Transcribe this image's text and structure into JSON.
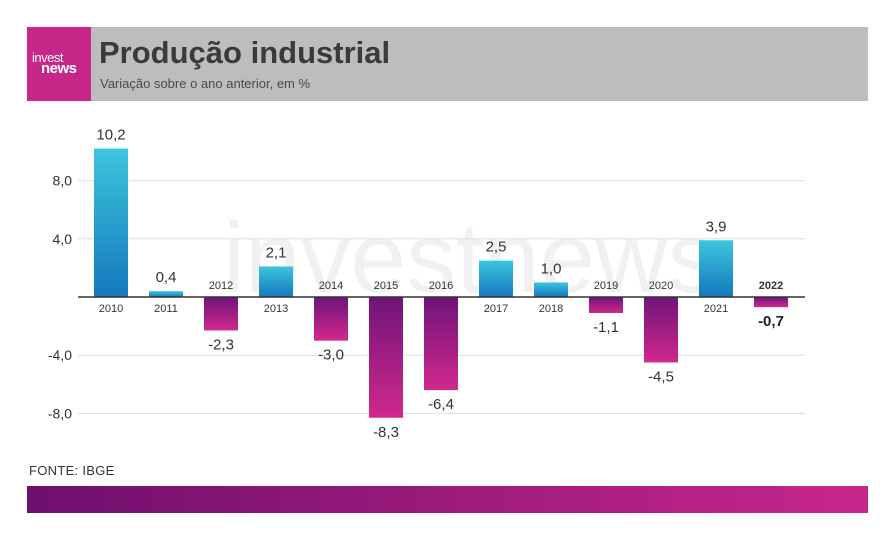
{
  "header": {
    "logo_line1": "invest",
    "logo_line2": "news",
    "title": "Produção industrial",
    "subtitle": "Variação sobre o ano anterior, em %"
  },
  "source": "FONTE: IBGE",
  "watermark": "investnews",
  "colors": {
    "positive_top": "#3cc6dc",
    "positive_bottom": "#1478be",
    "negative_top": "#6e147a",
    "negative_bottom": "#d2288c",
    "header_bg": "#bdbdbd",
    "logo_bg": "#c8278a"
  },
  "chart_data": {
    "type": "bar",
    "categories": [
      "2010",
      "2011",
      "2012",
      "2013",
      "2014",
      "2015",
      "2016",
      "2017",
      "2018",
      "2019",
      "2020",
      "2021",
      "2022"
    ],
    "values": [
      10.2,
      0.4,
      -2.3,
      2.1,
      -3.0,
      -8.3,
      -6.4,
      2.5,
      1.0,
      -1.1,
      -4.5,
      3.9,
      -0.7
    ],
    "value_labels": [
      "10,2",
      "0,4",
      "-2,3",
      "2,1",
      "-3,0",
      "-8,3",
      "-6,4",
      "2,5",
      "1,0",
      "-1,1",
      "-4,5",
      "3,9",
      "-0,7"
    ],
    "highlight_category": "2022",
    "y_ticks": [
      8,
      4,
      -4,
      -8
    ],
    "y_tick_labels": [
      "8,0",
      "4,0",
      "-4,0",
      "-8,0"
    ],
    "ylim": [
      -10,
      12
    ],
    "grid": true,
    "title": "Produção industrial",
    "subtitle": "Variação sobre o ano anterior, em %"
  }
}
